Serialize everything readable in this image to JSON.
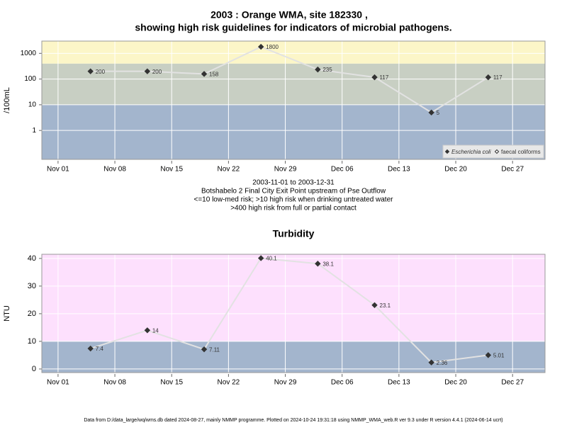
{
  "title_lines": [
    "2003 : Orange WMA, site 182330 ,",
    "showing high risk guidelines for indicators of microbial pathogens."
  ],
  "footer": "Data from D:/data_large/wq/wms.db dated 2024-08-27, mainly NMMP programme. Plotted on 2024-10-24 19:31:18 using NMMP_WMA_web.R ver 9.3 under R version 4.4.1 (2024-06-14 ucrt)",
  "chart_data": [
    {
      "type": "line",
      "y_scale": "log",
      "y_label": "/100mL",
      "x": [
        "2003-11-05",
        "2003-11-12",
        "2003-11-19",
        "2003-11-26",
        "2003-12-03",
        "2003-12-10",
        "2003-12-17",
        "2003-12-24"
      ],
      "series": [
        {
          "name": "Escherichia coli",
          "color": "#333333",
          "filled": true,
          "values": [
            200,
            200,
            158,
            1800,
            235,
            117,
            5,
            117
          ]
        },
        {
          "name": "faecal coliforms",
          "color": "#333333",
          "filled": false,
          "values": [
            null,
            null,
            null,
            null,
            null,
            null,
            null,
            null
          ]
        }
      ],
      "line_color": "#e2e2e2",
      "xlim": [
        "2003-10-30",
        "2003-12-31"
      ],
      "xticks": [
        {
          "value": "2003-11-01",
          "label": "Nov 01"
        },
        {
          "value": "2003-11-08",
          "label": "Nov 08"
        },
        {
          "value": "2003-11-15",
          "label": "Nov 15"
        },
        {
          "value": "2003-11-22",
          "label": "Nov 22"
        },
        {
          "value": "2003-11-29",
          "label": "Nov 29"
        },
        {
          "value": "2003-12-06",
          "label": "Dec 06"
        },
        {
          "value": "2003-12-13",
          "label": "Dec 13"
        },
        {
          "value": "2003-12-20",
          "label": "Dec 20"
        },
        {
          "value": "2003-12-27",
          "label": "Dec 27"
        }
      ],
      "ylim": [
        0.075,
        3000
      ],
      "yticks": [
        1,
        10,
        100,
        1000
      ],
      "band_breaks": [
        10,
        400
      ],
      "band_colors": [
        "#a3b5cd",
        "#c8cfc3",
        "#fcf6c8"
      ],
      "grid": true,
      "legend": "bottom right",
      "notes": [
        "2003-11-01 to 2003-12-31",
        "Botshabelo 2 Final City Exit Point upstream of Pse Outflow",
        "<=10 low-med risk; >10 high risk when drinking untreated water",
        ">400 high risk from full or partial contact"
      ]
    },
    {
      "type": "line",
      "title": "Turbidity",
      "y_label": "NTU",
      "x": [
        "2003-11-05",
        "2003-11-12",
        "2003-11-19",
        "2003-11-26",
        "2003-12-03",
        "2003-12-10",
        "2003-12-17",
        "2003-12-24"
      ],
      "values": [
        7.4,
        14,
        7.11,
        40.1,
        38.1,
        23.1,
        2.36,
        5.01
      ],
      "color": "#333333",
      "line_color": "#e2e2e2",
      "xlim": [
        "2003-10-30",
        "2003-12-31"
      ],
      "xticks": [
        {
          "value": "2003-11-01",
          "label": "Nov 01"
        },
        {
          "value": "2003-11-08",
          "label": "Nov 08"
        },
        {
          "value": "2003-11-15",
          "label": "Nov 15"
        },
        {
          "value": "2003-11-22",
          "label": "Nov 22"
        },
        {
          "value": "2003-11-29",
          "label": "Nov 29"
        },
        {
          "value": "2003-12-06",
          "label": "Dec 06"
        },
        {
          "value": "2003-12-13",
          "label": "Dec 13"
        },
        {
          "value": "2003-12-20",
          "label": "Dec 20"
        },
        {
          "value": "2003-12-27",
          "label": "Dec 27"
        }
      ],
      "ylim": [
        -1.3,
        41.5
      ],
      "yticks": [
        0,
        10,
        20,
        30,
        40
      ],
      "band_breaks": [
        10
      ],
      "band_colors": [
        "#a3b5cd",
        "#fde0fd"
      ],
      "grid": true
    }
  ]
}
